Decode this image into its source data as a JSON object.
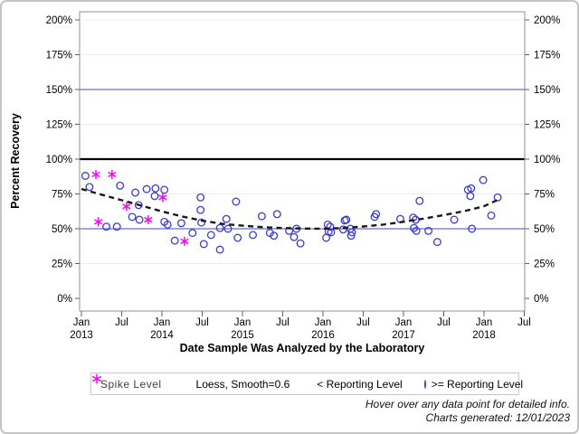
{
  "axes": {
    "y_title": "Percent Recovery",
    "x_title": "Date Sample Was Analyzed by the Laboratory",
    "y_ticks": [
      {
        "value": 0,
        "label": "0%"
      },
      {
        "value": 25,
        "label": "25%"
      },
      {
        "value": 50,
        "label": "50%"
      },
      {
        "value": 75,
        "label": "75%"
      },
      {
        "value": 100,
        "label": "100%"
      },
      {
        "value": 125,
        "label": "125%"
      },
      {
        "value": 150,
        "label": "150%"
      },
      {
        "value": 175,
        "label": "175%"
      },
      {
        "value": 200,
        "label": "200%"
      }
    ],
    "x_ticks": [
      {
        "date": 2013.0,
        "month": "Jan",
        "year": "2013"
      },
      {
        "date": 2013.5,
        "month": "Jul",
        "year": ""
      },
      {
        "date": 2014.0,
        "month": "Jan",
        "year": "2014"
      },
      {
        "date": 2014.5,
        "month": "Jul",
        "year": ""
      },
      {
        "date": 2015.0,
        "month": "Jan",
        "year": "2015"
      },
      {
        "date": 2015.5,
        "month": "Jul",
        "year": ""
      },
      {
        "date": 2016.0,
        "month": "Jan",
        "year": "2016"
      },
      {
        "date": 2016.5,
        "month": "Jul",
        "year": ""
      },
      {
        "date": 2017.0,
        "month": "Jan",
        "year": "2017"
      },
      {
        "date": 2017.5,
        "month": "Jul",
        "year": ""
      },
      {
        "date": 2018.0,
        "month": "Jan",
        "year": "2018"
      },
      {
        "date": 2018.5,
        "month": "Jul",
        "year": ""
      }
    ]
  },
  "legend": {
    "title": "Spike Level",
    "loess_label": "Loess, Smooth=0.6",
    "below_label": "< Reporting Level",
    "above_label": ">= Reporting Level"
  },
  "footnotes": {
    "line1": "Hover over any data point for detailed info.",
    "line2": "Charts generated: 12/01/2023"
  },
  "colors": {
    "circle_marker": "#3b3bd1",
    "asterisk_marker": "#ff00ff",
    "blue_refline": "#6a6ecb",
    "black_refline": "#000000",
    "gridline": "#ececec",
    "frame": "#919191",
    "tick": "#5f5f5f",
    "loess_line": "#1a1a1a"
  },
  "chart_data": {
    "type": "scatter",
    "xlabel": "Date Sample Was Analyzed by the Laboratory",
    "ylabel": "Percent Recovery",
    "x_unit": "decimal_year",
    "xlim": [
      2012.98,
      2018.53
    ],
    "ylim": [
      0,
      200
    ],
    "grid": true,
    "legend_position": "bottom",
    "reference_lines": [
      {
        "value": 150,
        "style": "solid",
        "color": "#6a6ecb",
        "width": 1.2
      },
      {
        "value": 100,
        "style": "solid",
        "color": "#000000",
        "width": 2.2
      },
      {
        "value": 50,
        "style": "solid",
        "color": "#6a6ecb",
        "width": 1.2
      }
    ],
    "series": [
      {
        "name": ">= Reporting Level",
        "marker": "circle",
        "color": "#3b3bd1",
        "points": [
          [
            2013.05,
            88
          ],
          [
            2013.1,
            80
          ],
          [
            2013.48,
            81
          ],
          [
            2013.67,
            76
          ],
          [
            2013.81,
            78.5
          ],
          [
            2013.92,
            79
          ],
          [
            2014.03,
            78
          ],
          [
            2013.91,
            73.5
          ],
          [
            2013.71,
            67
          ],
          [
            2013.63,
            58.5
          ],
          [
            2013.72,
            56.5
          ],
          [
            2013.31,
            51.5
          ],
          [
            2013.44,
            51.5
          ],
          [
            2014.03,
            55
          ],
          [
            2014.07,
            53
          ],
          [
            2014.24,
            54
          ],
          [
            2014.16,
            41.5
          ],
          [
            2014.38,
            47
          ],
          [
            2014.48,
            72.5
          ],
          [
            2014.92,
            69.5
          ],
          [
            2014.48,
            63.5
          ],
          [
            2014.49,
            54.5
          ],
          [
            2014.8,
            57
          ],
          [
            2014.72,
            50.5
          ],
          [
            2014.82,
            50
          ],
          [
            2015.24,
            59
          ],
          [
            2015.43,
            60.5
          ],
          [
            2014.61,
            45.5
          ],
          [
            2014.94,
            43.5
          ],
          [
            2015.13,
            45.5
          ],
          [
            2014.52,
            39
          ],
          [
            2014.72,
            35
          ],
          [
            2015.34,
            47
          ],
          [
            2015.39,
            45
          ],
          [
            2015.58,
            48.5
          ],
          [
            2015.64,
            44
          ],
          [
            2015.72,
            39.5
          ],
          [
            2015.67,
            50
          ],
          [
            2016.06,
            53
          ],
          [
            2016.09,
            51.5
          ],
          [
            2016.07,
            48
          ],
          [
            2016.1,
            47.5
          ],
          [
            2016.04,
            43.5
          ],
          [
            2016.27,
            56
          ],
          [
            2016.29,
            56.5
          ],
          [
            2016.25,
            49.5
          ],
          [
            2016.34,
            50
          ],
          [
            2016.36,
            47.5
          ],
          [
            2016.35,
            45
          ],
          [
            2016.64,
            58.5
          ],
          [
            2016.66,
            60.5
          ],
          [
            2016.96,
            57
          ],
          [
            2017.12,
            58
          ],
          [
            2017.15,
            56.5
          ],
          [
            2017.2,
            70
          ],
          [
            2017.13,
            50.5
          ],
          [
            2017.16,
            48.5
          ],
          [
            2017.31,
            48.5
          ],
          [
            2017.42,
            40.5
          ],
          [
            2017.63,
            56.5
          ],
          [
            2017.85,
            50
          ],
          [
            2017.99,
            85
          ],
          [
            2017.8,
            78
          ],
          [
            2017.84,
            79
          ],
          [
            2017.83,
            73.5
          ],
          [
            2018.09,
            59.5
          ],
          [
            2018.17,
            72.5
          ]
        ]
      },
      {
        "name": "< Reporting Level",
        "marker": "asterisk",
        "color": "#ff00ff",
        "points": [
          [
            2013.18,
            89
          ],
          [
            2013.38,
            89
          ],
          [
            2013.56,
            66
          ],
          [
            2013.83,
            56.5
          ],
          [
            2014.01,
            72.5
          ],
          [
            2013.21,
            55
          ],
          [
            2014.28,
            41
          ]
        ]
      },
      {
        "name": "Loess, Smooth=0.6",
        "type": "line",
        "style": "dashed",
        "color": "#1a1a1a",
        "points": [
          [
            2013.0,
            78.6
          ],
          [
            2013.25,
            74.5
          ],
          [
            2013.5,
            70.5
          ],
          [
            2013.75,
            66.5
          ],
          [
            2014.0,
            62.5
          ],
          [
            2014.25,
            58.8
          ],
          [
            2014.5,
            55.8
          ],
          [
            2014.75,
            53.5
          ],
          [
            2015.0,
            52.2
          ],
          [
            2015.25,
            51.2
          ],
          [
            2015.5,
            50.5
          ],
          [
            2015.75,
            50.1
          ],
          [
            2016.0,
            50.0
          ],
          [
            2016.25,
            50.5
          ],
          [
            2016.5,
            51.6
          ],
          [
            2016.75,
            53.0
          ],
          [
            2017.0,
            55.0
          ],
          [
            2017.25,
            57.3
          ],
          [
            2017.5,
            59.8
          ],
          [
            2017.75,
            62.6
          ],
          [
            2018.0,
            66.2
          ],
          [
            2018.2,
            71.5
          ]
        ]
      }
    ]
  }
}
